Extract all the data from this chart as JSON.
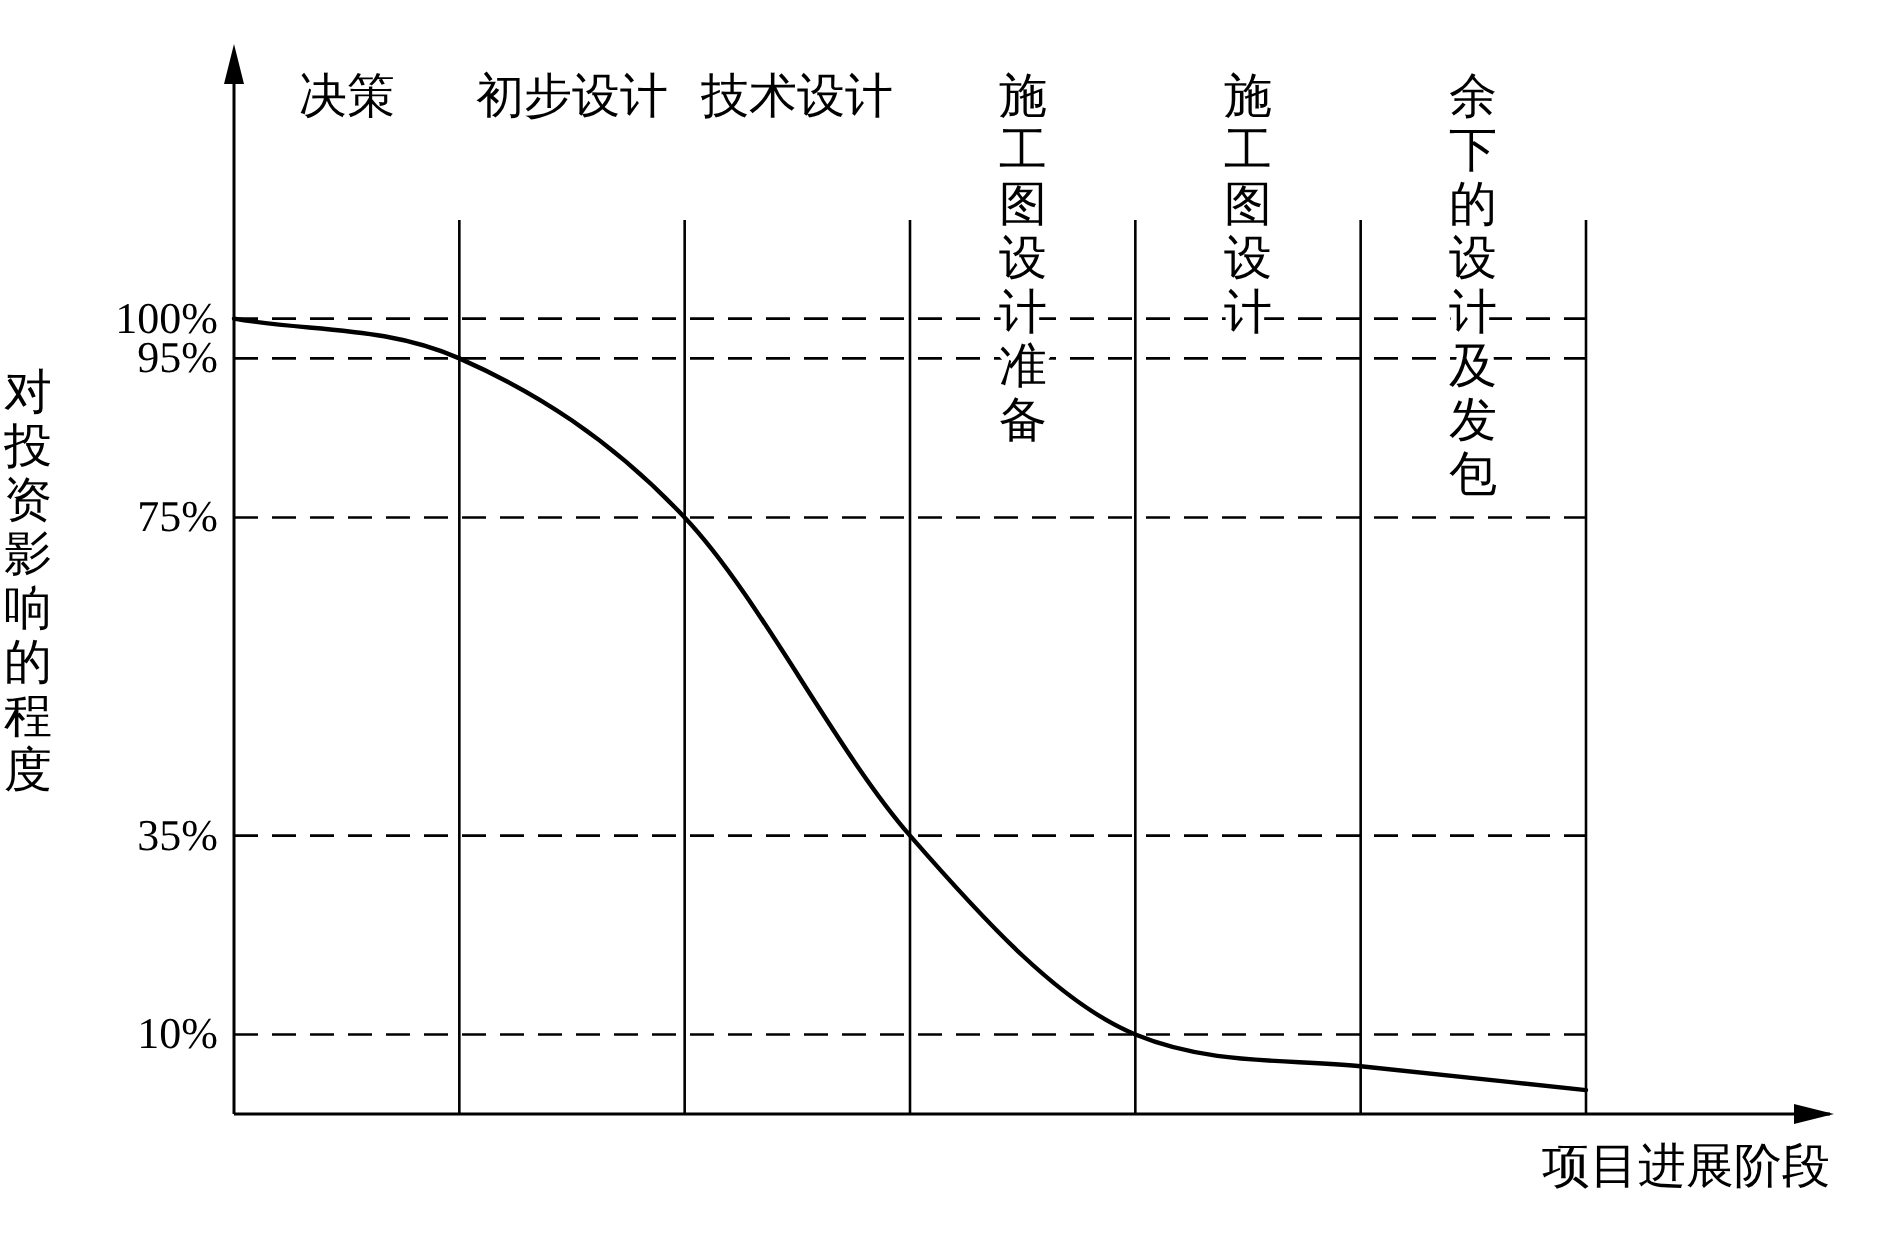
{
  "chart_data": {
    "type": "line",
    "ylabel": "对投资影响的程度",
    "xlabel": "项目进展阶段",
    "categories": [
      null,
      null,
      null,
      null,
      null,
      null,
      null
    ],
    "series": [
      {
        "color": "#000000",
        "values": [
          100,
          95,
          75,
          35,
          10,
          6,
          3
        ]
      }
    ],
    "ylim": [
      0,
      130
    ],
    "yticks": [
      {
        "value": 10,
        "label": "10%"
      },
      {
        "value": 35,
        "label": "35%"
      },
      {
        "value": 75,
        "label": "75%"
      },
      {
        "value": 95,
        "label": "95%"
      },
      {
        "value": 100,
        "label": "100%"
      }
    ],
    "grid": true,
    "marker": "none",
    "line_style": "solid",
    "annotations": [
      "决策",
      "初步设计",
      "技术设计",
      "施工图设计准备",
      "施工图设计",
      "余下的设计及发包"
    ]
  }
}
